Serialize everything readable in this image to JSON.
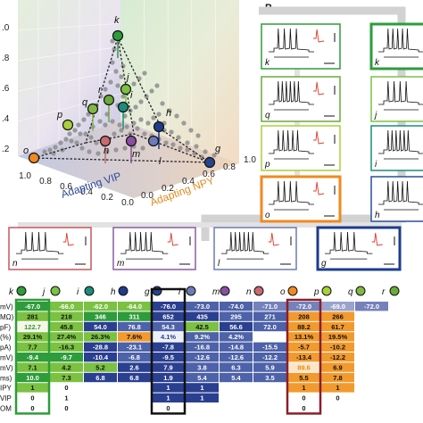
{
  "panel_b_label": "B",
  "chart3d": {
    "axis_x_label": "Adapting VIP",
    "axis_y_label": "Adapting NPY",
    "x_ticks": [
      "0.0",
      "0.2",
      "0.4",
      "0.6",
      "0.8",
      "1.0"
    ],
    "y_ticks": [
      "0.0",
      "0.2",
      "0.4",
      "0.6",
      "0.8",
      "1.0"
    ],
    "z_ticks": [
      ".0",
      ".8",
      ".6",
      ".4",
      ".2"
    ]
  },
  "chart_data": {
    "type": "scatter",
    "xlabel": "Adapting VIP",
    "ylabel": "Adapting NPY",
    "labeled_points": [
      {
        "name": "k",
        "color": "#2e9c3a"
      },
      {
        "name": "j",
        "color": "#7bc142"
      },
      {
        "name": "i",
        "color": "#1a8c7c"
      },
      {
        "name": "h",
        "color": "#1e3b8c"
      },
      {
        "name": "g",
        "color": "#27458f"
      },
      {
        "name": "l",
        "color": "#6d7bb6"
      },
      {
        "name": "m",
        "color": "#8a4f9e"
      },
      {
        "name": "n",
        "color": "#c86a6e"
      },
      {
        "name": "o",
        "color": "#ef8a1f"
      },
      {
        "name": "p",
        "color": "#a9cf3c"
      },
      {
        "name": "q",
        "color": "#7fb846"
      },
      {
        "name": "r",
        "color": "#6aaa3a"
      }
    ]
  },
  "cells_right": [
    {
      "label": "k",
      "color": "#2e9c3a",
      "thick": false
    },
    {
      "label": "k",
      "color": "#2e9c3a",
      "thick": true
    },
    {
      "label": "q",
      "color": "#6aaa3a",
      "thick": false
    },
    {
      "label": "j",
      "color": "#7bc142",
      "thick": false
    },
    {
      "label": "p",
      "color": "#a9cf3c",
      "thick": false
    },
    {
      "label": "i",
      "color": "#1a8c7c",
      "thick": false
    },
    {
      "label": "o",
      "color": "#ef8a1f",
      "thick": true
    },
    {
      "label": "h",
      "color": "#2b4f9a",
      "thick": false
    }
  ],
  "cells_bottom": [
    {
      "label": "n",
      "color": "#c8555e",
      "thick": false
    },
    {
      "label": "m",
      "color": "#8a5ba6",
      "thick": false
    },
    {
      "label": "l",
      "color": "#6d7bb6",
      "thick": false
    },
    {
      "label": "g",
      "color": "#1e3b8c",
      "thick": true
    }
  ],
  "table": {
    "headers": [
      {
        "label": "k",
        "color": "#2e9c3a"
      },
      {
        "label": "j",
        "color": "#7bc142"
      },
      {
        "label": "i",
        "color": "#1a8c7c"
      },
      {
        "label": "h",
        "color": "#1e3b8c"
      },
      {
        "label": "g",
        "color": "#27458f"
      },
      {
        "label": "l",
        "color": "#6d7bb6"
      },
      {
        "label": "m",
        "color": "#8a4f9e"
      },
      {
        "label": "n",
        "color": "#c86a6e"
      },
      {
        "label": "o",
        "color": "#ef8a1f"
      },
      {
        "label": "p",
        "color": "#a9cf3c"
      },
      {
        "label": "q",
        "color": "#7fb846"
      },
      {
        "label": "r",
        "color": "#6aaa3a"
      }
    ],
    "row_labels": [
      "mV)",
      "MΩ)",
      "pF)",
      "(%)",
      "pA)",
      "mV)",
      "mV)",
      "ms)",
      "IPY",
      "VIP",
      "OM"
    ],
    "rows": [
      [
        {
          "v": "-67.0",
          "c": "#2e9c3a",
          "t": "#fff"
        },
        {
          "v": "-66.0",
          "c": "#7bc142",
          "t": "#fff"
        },
        {
          "v": "-62.0",
          "c": "#7bc142",
          "t": "#fff"
        },
        {
          "v": "-64.0",
          "c": "#7bc142",
          "t": "#fff"
        },
        {
          "v": "-76.0",
          "c": "#2a3f8f",
          "t": "#fff"
        },
        {
          "v": "-73.0",
          "c": "#4d62a8",
          "t": "#fff"
        },
        {
          "v": "-74.0",
          "c": "#4d62a8",
          "t": "#fff"
        },
        {
          "v": "-71.0",
          "c": "#7481bb",
          "t": "#fff"
        },
        {
          "v": "-72.0",
          "c": "#7481bb",
          "t": "#fff"
        },
        {
          "v": "-69.0",
          "c": "#9aa3cc",
          "t": "#fff"
        },
        {
          "v": "-72.0",
          "c": "#7481bb",
          "t": "#fff"
        },
        {
          "v": "",
          "c": "#ffffff",
          "t": "#fff"
        }
      ],
      [
        {
          "v": "281",
          "c": "#7bc142",
          "t": "#111"
        },
        {
          "v": "218",
          "c": "#7bc142",
          "t": "#111"
        },
        {
          "v": "346",
          "c": "#2e9c3a",
          "t": "#fff"
        },
        {
          "v": "311",
          "c": "#2e9c3a",
          "t": "#fff"
        },
        {
          "v": "652",
          "c": "#2a3f8f",
          "t": "#fff"
        },
        {
          "v": "435",
          "c": "#2a3f8f",
          "t": "#fff"
        },
        {
          "v": "295",
          "c": "#4d62a8",
          "t": "#fff"
        },
        {
          "v": "271",
          "c": "#4d62a8",
          "t": "#fff"
        },
        {
          "v": "208",
          "c": "#f29a2e",
          "t": "#111"
        },
        {
          "v": "266",
          "c": "#f29a2e",
          "t": "#111"
        },
        {
          "v": "",
          "c": "#ffffff",
          "t": "#111"
        },
        {
          "v": "",
          "c": "#ffffff",
          "t": "#111"
        }
      ],
      [
        {
          "v": "122.7",
          "c": "#f7f7e8",
          "t": "#2e9c3a"
        },
        {
          "v": "45.8",
          "c": "#7bc142",
          "t": "#111"
        },
        {
          "v": "54.0",
          "c": "#2a3f8f",
          "t": "#fff"
        },
        {
          "v": "76.8",
          "c": "#4d62a8",
          "t": "#fff"
        },
        {
          "v": "54.3",
          "c": "#4d62a8",
          "t": "#fff"
        },
        {
          "v": "42.5",
          "c": "#7bc142",
          "t": "#111"
        },
        {
          "v": "56.6",
          "c": "#2a3f8f",
          "t": "#fff"
        },
        {
          "v": "72.0",
          "c": "#4d62a8",
          "t": "#fff"
        },
        {
          "v": "88.2",
          "c": "#f29a2e",
          "t": "#111"
        },
        {
          "v": "61.7",
          "c": "#f29a2e",
          "t": "#111"
        },
        {
          "v": "",
          "c": "#ffffff",
          "t": "#111"
        },
        {
          "v": "",
          "c": "#ffffff",
          "t": "#111"
        }
      ],
      [
        {
          "v": "29.1%",
          "c": "#7bc142",
          "t": "#111"
        },
        {
          "v": "27.4%",
          "c": "#7bc142",
          "t": "#111"
        },
        {
          "v": "26.3%",
          "c": "#7bc142",
          "t": "#111"
        },
        {
          "v": "7.6%",
          "c": "#f29a2e",
          "t": "#111"
        },
        {
          "v": "4.1%",
          "c": "#eef0f8",
          "t": "#2a3f8f"
        },
        {
          "v": "9.2%",
          "c": "#4d62a8",
          "t": "#fff"
        },
        {
          "v": "4.2%",
          "c": "#4d62a8",
          "t": "#fff"
        },
        {
          "v": "",
          "c": "#ffffff",
          "t": "#111"
        },
        {
          "v": "13.1%",
          "c": "#f29a2e",
          "t": "#111"
        },
        {
          "v": "19.5%",
          "c": "#f29a2e",
          "t": "#111"
        },
        {
          "v": "",
          "c": "#ffffff",
          "t": "#111"
        },
        {
          "v": "",
          "c": "#ffffff",
          "t": "#111"
        }
      ],
      [
        {
          "v": "7.7",
          "c": "#7bc142",
          "t": "#111"
        },
        {
          "v": "-16.3",
          "c": "#7bc142",
          "t": "#111"
        },
        {
          "v": "-28.8",
          "c": "#2a3f8f",
          "t": "#fff"
        },
        {
          "v": "-23.1",
          "c": "#4d62a8",
          "t": "#fff"
        },
        {
          "v": "-7.8",
          "c": "#2a3f8f",
          "t": "#fff"
        },
        {
          "v": "-16.8",
          "c": "#4d62a8",
          "t": "#fff"
        },
        {
          "v": "-14.8",
          "c": "#4d62a8",
          "t": "#fff"
        },
        {
          "v": "-15.5",
          "c": "#4d62a8",
          "t": "#fff"
        },
        {
          "v": "-5.7",
          "c": "#f29a2e",
          "t": "#111"
        },
        {
          "v": "-10.2",
          "c": "#f29a2e",
          "t": "#111"
        },
        {
          "v": "",
          "c": "#ffffff",
          "t": "#111"
        },
        {
          "v": "",
          "c": "#ffffff",
          "t": "#111"
        }
      ],
      [
        {
          "v": "-9.4",
          "c": "#2e9c3a",
          "t": "#fff"
        },
        {
          "v": "-9.7",
          "c": "#2e9c3a",
          "t": "#fff"
        },
        {
          "v": "-10.4",
          "c": "#2a3f8f",
          "t": "#fff"
        },
        {
          "v": "-6.8",
          "c": "#4d62a8",
          "t": "#fff"
        },
        {
          "v": "-9.5",
          "c": "#2a3f8f",
          "t": "#fff"
        },
        {
          "v": "-12.6",
          "c": "#4d62a8",
          "t": "#fff"
        },
        {
          "v": "-12.6",
          "c": "#4d62a8",
          "t": "#fff"
        },
        {
          "v": "-12.2",
          "c": "#4d62a8",
          "t": "#fff"
        },
        {
          "v": "-13.4",
          "c": "#f29a2e",
          "t": "#111"
        },
        {
          "v": "-12.2",
          "c": "#f29a2e",
          "t": "#111"
        },
        {
          "v": "",
          "c": "#ffffff",
          "t": "#111"
        },
        {
          "v": "",
          "c": "#ffffff",
          "t": "#111"
        }
      ],
      [
        {
          "v": "7.1",
          "c": "#7bc142",
          "t": "#111"
        },
        {
          "v": "4.2",
          "c": "#7bc142",
          "t": "#111"
        },
        {
          "v": "5.2",
          "c": "#7bc142",
          "t": "#111"
        },
        {
          "v": "2.6",
          "c": "#2a3f8f",
          "t": "#fff"
        },
        {
          "v": "7.9",
          "c": "#2a3f8f",
          "t": "#fff"
        },
        {
          "v": "3.8",
          "c": "#4d62a8",
          "t": "#fff"
        },
        {
          "v": "6.3",
          "c": "#4d62a8",
          "t": "#fff"
        },
        {
          "v": "5.9",
          "c": "#4d62a8",
          "t": "#fff"
        },
        {
          "v": "89.6",
          "c": "#fbe7c8",
          "t": "#e78b1a"
        },
        {
          "v": "6.9",
          "c": "#f29a2e",
          "t": "#111"
        },
        {
          "v": "",
          "c": "#ffffff",
          "t": "#111"
        },
        {
          "v": "",
          "c": "#ffffff",
          "t": "#111"
        }
      ],
      [
        {
          "v": "10.0",
          "c": "#2e9c3a",
          "t": "#fff"
        },
        {
          "v": "7.3",
          "c": "#7bc142",
          "t": "#111"
        },
        {
          "v": "6.8",
          "c": "#2a3f8f",
          "t": "#fff"
        },
        {
          "v": "6.8",
          "c": "#2a3f8f",
          "t": "#fff"
        },
        {
          "v": "1.9",
          "c": "#2a3f8f",
          "t": "#fff"
        },
        {
          "v": "5.4",
          "c": "#4d62a8",
          "t": "#fff"
        },
        {
          "v": "5.4",
          "c": "#4d62a8",
          "t": "#fff"
        },
        {
          "v": "3.5",
          "c": "#4d62a8",
          "t": "#fff"
        },
        {
          "v": "5.5",
          "c": "#f29a2e",
          "t": "#111"
        },
        {
          "v": "7.8",
          "c": "#f29a2e",
          "t": "#111"
        },
        {
          "v": "",
          "c": "#ffffff",
          "t": "#111"
        },
        {
          "v": "",
          "c": "#ffffff",
          "t": "#111"
        }
      ],
      [
        {
          "v": "1",
          "c": "#7bc142",
          "t": "#111"
        },
        {
          "v": "0",
          "c": "#ffffff",
          "t": "#111"
        },
        {
          "v": "",
          "c": "#ffffff",
          "t": "#111"
        },
        {
          "v": "",
          "c": "#ffffff",
          "t": "#111"
        },
        {
          "v": "1",
          "c": "#2a3f8f",
          "t": "#fff"
        },
        {
          "v": "1",
          "c": "#2a3f8f",
          "t": "#fff"
        },
        {
          "v": "",
          "c": "#ffffff",
          "t": "#111"
        },
        {
          "v": "",
          "c": "#ffffff",
          "t": "#111"
        },
        {
          "v": "1",
          "c": "#f29a2e",
          "t": "#111"
        },
        {
          "v": "1",
          "c": "#f29a2e",
          "t": "#111"
        },
        {
          "v": "",
          "c": "#ffffff",
          "t": "#111"
        },
        {
          "v": "",
          "c": "#ffffff",
          "t": "#111"
        }
      ],
      [
        {
          "v": "0",
          "c": "#ffffff",
          "t": "#111"
        },
        {
          "v": "1",
          "c": "#ffffff",
          "t": "#111"
        },
        {
          "v": "",
          "c": "#ffffff",
          "t": "#111"
        },
        {
          "v": "",
          "c": "#ffffff",
          "t": "#111"
        },
        {
          "v": "1",
          "c": "#2a3f8f",
          "t": "#fff"
        },
        {
          "v": "1",
          "c": "#2a3f8f",
          "t": "#fff"
        },
        {
          "v": "",
          "c": "#ffffff",
          "t": "#111"
        },
        {
          "v": "",
          "c": "#ffffff",
          "t": "#111"
        },
        {
          "v": "0",
          "c": "#ffffff",
          "t": "#111"
        },
        {
          "v": "0",
          "c": "#ffffff",
          "t": "#111"
        },
        {
          "v": "",
          "c": "#ffffff",
          "t": "#111"
        },
        {
          "v": "",
          "c": "#ffffff",
          "t": "#111"
        }
      ],
      [
        {
          "v": "0",
          "c": "#ffffff",
          "t": "#111"
        },
        {
          "v": "0",
          "c": "#ffffff",
          "t": "#111"
        },
        {
          "v": "",
          "c": "#ffffff",
          "t": "#111"
        },
        {
          "v": "",
          "c": "#ffffff",
          "t": "#111"
        },
        {
          "v": "0",
          "c": "#ffffff",
          "t": "#111"
        },
        {
          "v": "",
          "c": "#ffffff",
          "t": "#111"
        },
        {
          "v": "",
          "c": "#ffffff",
          "t": "#111"
        },
        {
          "v": "",
          "c": "#ffffff",
          "t": "#111"
        },
        {
          "v": "0",
          "c": "#ffffff",
          "t": "#111"
        },
        {
          "v": "",
          "c": "#ffffff",
          "t": "#111"
        },
        {
          "v": "",
          "c": "#ffffff",
          "t": "#111"
        },
        {
          "v": "",
          "c": "#ffffff",
          "t": "#111"
        }
      ]
    ]
  }
}
